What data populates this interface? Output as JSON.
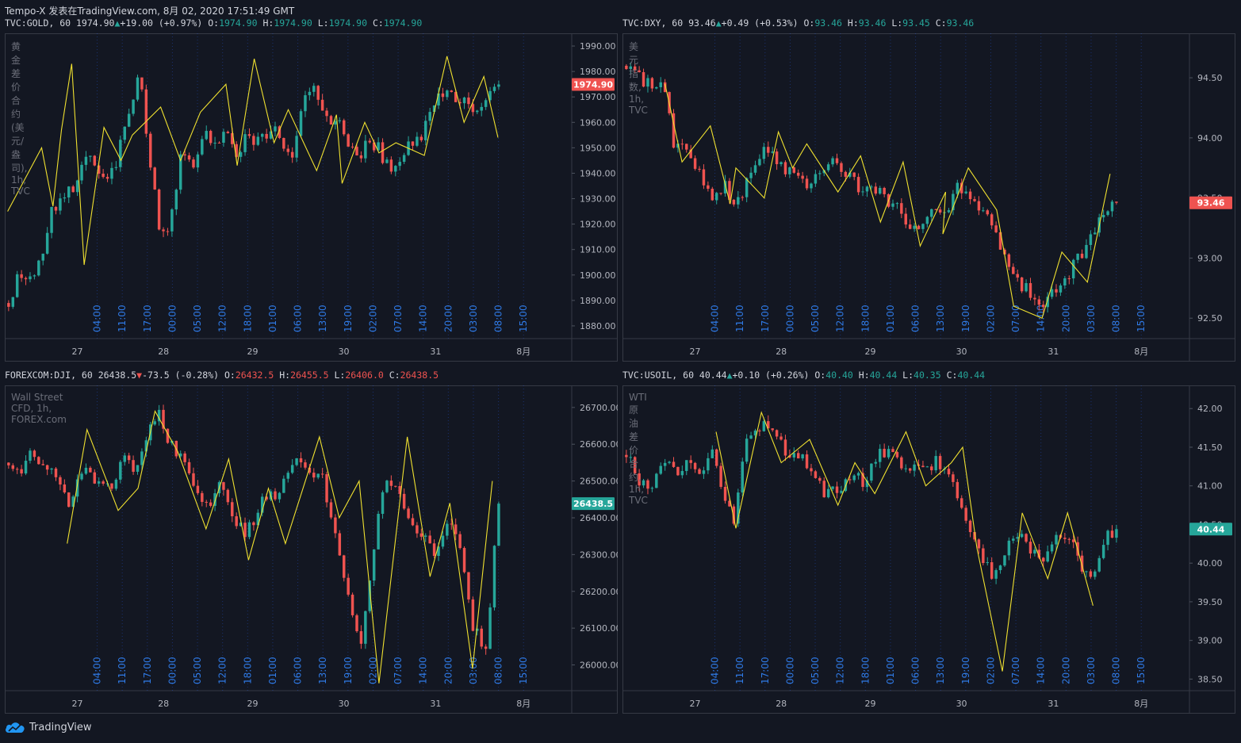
{
  "header": "Tempo-X 发表在TradingView.com, 8月 02, 2020 17:51:49 GMT",
  "footer": {
    "brand": "TradingView",
    "icon": "tradingview-cloud-icon"
  },
  "colors": {
    "up": "#26a69a",
    "down": "#ef5350",
    "zigzag": "#f0e130",
    "grid": "#2a2e39",
    "session": "#2962ff"
  },
  "x_ticks": [
    "27",
    "28",
    "29",
    "30",
    "31",
    "8月"
  ],
  "panels": [
    {
      "id": "gold",
      "symbol": "TVC:GOLD, 60",
      "last": "1974.90",
      "change_dir": "up",
      "change": "+19.00 (+0.97%)",
      "o": "1974.90",
      "h": "1974.90",
      "l": "1974.90",
      "c": "1974.90",
      "ohlc_color": "g",
      "label": "黄金差价合约(美元/盎司), 1h, TVC",
      "price_badge": "1974.90",
      "badge_color": "#ef5350",
      "sessions": [
        "04:00",
        "11:00",
        "17:00",
        "00:00",
        "05:00",
        "12:00",
        "18:00",
        "01:00",
        "06:00",
        "13:00",
        "19:00",
        "02:00",
        "07:00",
        "14:00",
        "20:00",
        "03:00",
        "08:00",
        "15:00"
      ]
    },
    {
      "id": "dxy",
      "symbol": "TVC:DXY, 60",
      "last": "93.46",
      "change_dir": "up",
      "change": "+0.49 (+0.53%)",
      "o": "93.46",
      "h": "93.46",
      "l": "93.45",
      "c": "93.46",
      "ohlc_color": "g",
      "label": "美元指数, 1h, TVC",
      "price_badge": "93.46",
      "badge_color": "#ef5350",
      "sessions": [
        "04:00",
        "11:00",
        "17:00",
        "00:00",
        "05:00",
        "12:00",
        "18:00",
        "01:00",
        "06:00",
        "13:00",
        "19:00",
        "02:00",
        "07:00",
        "14:00",
        "20:00",
        "03:00",
        "08:00",
        "15:00"
      ]
    },
    {
      "id": "dji",
      "symbol": "FOREXCOM:DJI, 60",
      "last": "26438.5",
      "change_dir": "down",
      "change": "-73.5 (-0.28%)",
      "o": "26432.5",
      "h": "26455.5",
      "l": "26406.0",
      "c": "26438.5",
      "ohlc_color": "r",
      "label": "Wall Street CFD, 1h, FOREX.com",
      "price_badge": "26438.5",
      "badge_color": "#26a69a",
      "sessions": [
        "04:00",
        "11:00",
        "17:00",
        "00:00",
        "05:00",
        "12:00",
        "18:00",
        "01:00",
        "06:00",
        "13:00",
        "19:00",
        "02:00",
        "07:00",
        "14:00",
        "20:00",
        "03:00",
        "08:00",
        "15:00"
      ]
    },
    {
      "id": "usoil",
      "symbol": "TVC:USOIL, 60",
      "last": "40.44",
      "change_dir": "up",
      "change": "+0.10 (+0.26%)",
      "o": "40.40",
      "h": "40.44",
      "l": "40.35",
      "c": "40.44",
      "ohlc_color": "g",
      "label": "WTI 原油差价合约, 1h, TVC",
      "price_badge": "40.44",
      "badge_color": "#26a69a",
      "sessions": [
        "04:00",
        "11:00",
        "17:00",
        "00:00",
        "05:00",
        "12:00",
        "18:00",
        "01:00",
        "06:00",
        "13:00",
        "19:00",
        "02:00",
        "07:00",
        "14:00",
        "20:00",
        "03:00",
        "08:00",
        "15:00"
      ]
    }
  ],
  "chart_data": [
    {
      "type": "candlestick",
      "symbol": "TVC:GOLD",
      "interval": "1h",
      "y_ticks": [
        1880,
        1890,
        1900,
        1910,
        1920,
        1930,
        1940,
        1950,
        1960,
        1970,
        1980,
        1990
      ],
      "ylim": [
        1875,
        1995
      ],
      "x_labels": [
        "27",
        "28",
        "29",
        "30",
        "31",
        "8月"
      ],
      "last": 1974.9,
      "path": [
        1889,
        1900,
        1899,
        1905,
        1925,
        1930,
        1935,
        1948,
        1942,
        1935,
        1945,
        1965,
        1978,
        1945,
        1912,
        1925,
        1950,
        1945,
        1955,
        1950,
        1960,
        1948,
        1955,
        1952,
        1958,
        1955,
        1945,
        1970,
        1972,
        1965,
        1960,
        1955,
        1945,
        1952,
        1950,
        1940,
        1948,
        1952,
        1955,
        1968,
        1972,
        1970,
        1968,
        1964,
        1972,
        1975
      ],
      "zigzag": [
        [
          0.005,
          1925
        ],
        [
          0.065,
          1950
        ],
        [
          0.085,
          1927
        ],
        [
          0.1,
          1957
        ],
        [
          0.118,
          1983
        ],
        [
          0.14,
          1904
        ],
        [
          0.175,
          1958
        ],
        [
          0.205,
          1945
        ],
        [
          0.225,
          1955
        ],
        [
          0.275,
          1966
        ],
        [
          0.31,
          1945
        ],
        [
          0.345,
          1964
        ],
        [
          0.39,
          1975
        ],
        [
          0.41,
          1943
        ],
        [
          0.44,
          1985
        ],
        [
          0.475,
          1952
        ],
        [
          0.5,
          1965
        ],
        [
          0.55,
          1941
        ],
        [
          0.585,
          1963
        ],
        [
          0.595,
          1936
        ],
        [
          0.635,
          1960
        ],
        [
          0.66,
          1948
        ],
        [
          0.69,
          1952
        ],
        [
          0.74,
          1947
        ],
        [
          0.78,
          1986
        ],
        [
          0.81,
          1960
        ],
        [
          0.845,
          1978
        ],
        [
          0.87,
          1954
        ]
      ]
    },
    {
      "type": "candlestick",
      "symbol": "TVC:DXY",
      "interval": "1h",
      "y_ticks": [
        92.5,
        93.0,
        93.5,
        94.0,
        94.5
      ],
      "ylim": [
        92.33,
        94.87
      ],
      "x_labels": [
        "27",
        "28",
        "29",
        "30",
        "31",
        "8月"
      ],
      "last": 93.46,
      "path": [
        94.6,
        94.5,
        94.45,
        94.4,
        93.9,
        93.95,
        93.7,
        93.5,
        93.6,
        93.45,
        93.65,
        93.9,
        93.85,
        93.75,
        93.65,
        93.6,
        93.75,
        93.8,
        93.7,
        93.6,
        93.65,
        93.5,
        93.45,
        93.3,
        93.25,
        93.4,
        93.35,
        93.6,
        93.5,
        93.4,
        93.2,
        93.0,
        92.8,
        92.7,
        92.6,
        92.75,
        92.85,
        93.0,
        93.2,
        93.4,
        93.46
      ],
      "zigzag": [
        [
          0.075,
          94.45
        ],
        [
          0.105,
          93.8
        ],
        [
          0.155,
          94.1
        ],
        [
          0.19,
          93.45
        ],
        [
          0.2,
          93.75
        ],
        [
          0.25,
          93.5
        ],
        [
          0.275,
          94.05
        ],
        [
          0.3,
          93.75
        ],
        [
          0.325,
          93.95
        ],
        [
          0.38,
          93.55
        ],
        [
          0.42,
          93.85
        ],
        [
          0.455,
          93.3
        ],
        [
          0.495,
          93.8
        ],
        [
          0.525,
          93.1
        ],
        [
          0.57,
          93.55
        ],
        [
          0.565,
          93.2
        ],
        [
          0.61,
          93.75
        ],
        [
          0.66,
          93.4
        ],
        [
          0.69,
          92.6
        ],
        [
          0.74,
          92.5
        ],
        [
          0.775,
          93.05
        ],
        [
          0.82,
          92.8
        ],
        [
          0.86,
          93.7
        ]
      ]
    },
    {
      "type": "candlestick",
      "symbol": "FOREXCOM:DJI",
      "interval": "1h",
      "y_ticks": [
        26000,
        26100,
        26200,
        26300,
        26400,
        26500,
        26600,
        26700
      ],
      "ylim": [
        25930,
        26760
      ],
      "x_labels": [
        "27",
        "28",
        "29",
        "30",
        "31",
        "8月"
      ],
      "last": 26438.5,
      "path": [
        26550,
        26520,
        26580,
        26540,
        26480,
        26420,
        26560,
        26500,
        26470,
        26560,
        26540,
        26620,
        26680,
        26590,
        26560,
        26480,
        26420,
        26500,
        26380,
        26360,
        26440,
        26460,
        26500,
        26560,
        26520,
        26500,
        26350,
        26200,
        26050,
        26300,
        26520,
        26480,
        26400,
        26340,
        26300,
        26400,
        26300,
        26100,
        26050,
        26438
      ],
      "zigzag": [
        [
          0.11,
          26330
        ],
        [
          0.145,
          26640
        ],
        [
          0.2,
          26420
        ],
        [
          0.235,
          26480
        ],
        [
          0.265,
          26690
        ],
        [
          0.305,
          26580
        ],
        [
          0.355,
          26370
        ],
        [
          0.395,
          26560
        ],
        [
          0.43,
          26285
        ],
        [
          0.465,
          26480
        ],
        [
          0.495,
          26330
        ],
        [
          0.555,
          26620
        ],
        [
          0.59,
          26400
        ],
        [
          0.625,
          26500
        ],
        [
          0.66,
          25950
        ],
        [
          0.71,
          26620
        ],
        [
          0.75,
          26240
        ],
        [
          0.785,
          26440
        ],
        [
          0.825,
          25990
        ],
        [
          0.86,
          26500
        ]
      ]
    },
    {
      "type": "candlestick",
      "symbol": "TVC:USOIL",
      "interval": "1h",
      "y_ticks": [
        38.5,
        39.0,
        39.5,
        40.0,
        40.5,
        41.0,
        41.5,
        42.0
      ],
      "ylim": [
        38.35,
        42.3
      ],
      "x_labels": [
        "27",
        "28",
        "29",
        "30",
        "31",
        "8月"
      ],
      "last": 40.44,
      "path": [
        41.4,
        41.1,
        41.0,
        41.25,
        41.2,
        41.3,
        41.1,
        41.5,
        41.0,
        40.6,
        41.6,
        41.7,
        41.8,
        41.5,
        41.4,
        41.3,
        41.0,
        40.9,
        41.0,
        41.2,
        41.0,
        41.4,
        41.45,
        41.3,
        41.2,
        41.25,
        41.3,
        41.1,
        40.8,
        40.4,
        40.0,
        39.8,
        40.2,
        40.5,
        40.1,
        40.0,
        40.3,
        40.4,
        40.0,
        39.8,
        40.3,
        40.44
      ],
      "zigzag": [
        [
          0.165,
          41.7
        ],
        [
          0.2,
          40.45
        ],
        [
          0.245,
          41.95
        ],
        [
          0.28,
          41.3
        ],
        [
          0.33,
          41.6
        ],
        [
          0.38,
          40.75
        ],
        [
          0.41,
          41.3
        ],
        [
          0.445,
          40.9
        ],
        [
          0.5,
          41.7
        ],
        [
          0.535,
          41.0
        ],
        [
          0.58,
          41.3
        ],
        [
          0.6,
          41.5
        ],
        [
          0.625,
          40.2
        ],
        [
          0.67,
          38.6
        ],
        [
          0.705,
          40.65
        ],
        [
          0.75,
          39.8
        ],
        [
          0.785,
          40.65
        ],
        [
          0.83,
          39.45
        ]
      ]
    }
  ]
}
